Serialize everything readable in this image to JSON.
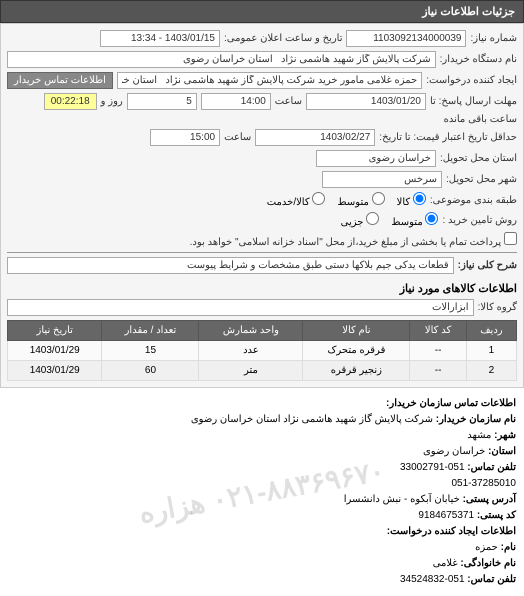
{
  "header": {
    "title": "جزئیات اطلاعات نیاز"
  },
  "form": {
    "need_number_label": "شماره نیاز:",
    "need_number": "1103092134000039",
    "announce_label": "تاریخ و ساعت اعلان عمومی:",
    "announce_value": "1403/01/15 - 13:34",
    "buyer_org_label": "نام دستگاه خریدار:",
    "buyer_org": "شرکت پالایش گاز شهید هاشمی نژاد   استان خراسان رضوی",
    "requester_label": "ایجاد کننده درخواست:",
    "requester": "حمزه غلامی مامور خرید شرکت پالایش گاز شهید هاشمی نژاد   استان خراسا",
    "contact_btn": "اطلاعات تماس خریدار",
    "reply_deadline_label": "مهلت ارسال پاسخ: تا",
    "reply_date": "1403/01/20",
    "reply_time_label": "ساعت",
    "reply_time": "14:00",
    "days_label": "روز و",
    "days_value": "5",
    "remaining_label": "ساعت باقی مانده",
    "remaining_time": "00:22:18",
    "validity_label": "حداقل تاریخ اعتبار قیمت: تا تاریخ:",
    "validity_date": "1403/02/27",
    "validity_time_label": "ساعت",
    "validity_time": "15:00",
    "delivery_province_label": "استان محل تحویل:",
    "delivery_province": "خراسان رضوی",
    "delivery_city_label": "شهر محل تحویل:",
    "delivery_city": "سرخس",
    "pack_type_label": "طبقه بندی موضوعی:",
    "pack_goods": "کالا",
    "pack_medium": "متوسط",
    "pack_service": "کالا/خدمت",
    "purchase_type_label": "روش تامین خرید :",
    "pay_medium": "متوسط",
    "pay_partial": "جزیی",
    "pay_note": "پرداخت تمام یا بخشی از مبلغ خرید،از محل \"اسناد خزانه اسلامی\" خواهد بود.",
    "need_desc_label": "شرح کلی نیاز:",
    "need_desc": "قطعات یدکی جیم بلاکها دستی طبق مشخصات و شرایط پیوست"
  },
  "goods": {
    "section_title": "اطلاعات کالاهای مورد نیاز",
    "group_label": "گروه کالا:",
    "group_value": "ابزارآلات",
    "columns": [
      "ردیف",
      "کد کالا",
      "نام کالا",
      "واحد شمارش",
      "تعداد / مقدار",
      "تاریخ نیاز"
    ],
    "rows": [
      [
        "1",
        "--",
        "قرقره متحرک",
        "عدد",
        "15",
        "1403/01/29"
      ],
      [
        "2",
        "--",
        "زنجیر قرقره",
        "متر",
        "60",
        "1403/01/29"
      ]
    ]
  },
  "watermark": "۰۲۱-۸۸۳۶۹۶۷۰ هزاره",
  "contact": {
    "heading": "اطلاعات تماس سازمان خریدار:",
    "org_label": "نام سازمان خریدار:",
    "org": "شرکت پالایش گاز شهید هاشمی نژاد استان خراسان رضوی",
    "city_label": "شهر:",
    "city": "مشهد",
    "province_label": "استان:",
    "province": "خراسان رضوی",
    "phone_label": "تلفن تماس:",
    "phone": "051-33002791\n051-37285010",
    "postal_label": "آدرس پستی:",
    "postal": "خیابان آبکوه - نبش دانشسرا",
    "postcode_label": "کد پستی:",
    "postcode": "9184675371",
    "req_info_label": "اطلاعات ایجاد کننده درخواست:",
    "fname_label": "نام:",
    "fname": "حمزه",
    "lname_label": "نام خانوادگی:",
    "lname": "غلامی",
    "req_phone_label": "تلفن تماس:",
    "req_phone": "051-34524832"
  }
}
